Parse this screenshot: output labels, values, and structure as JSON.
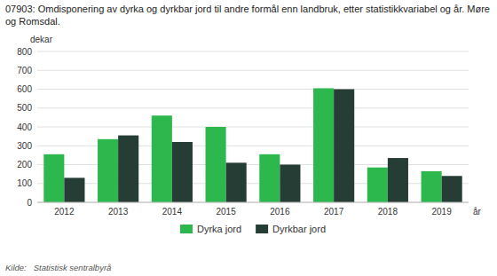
{
  "chart_data": {
    "type": "bar",
    "title": "07903: Omdisponering av dyrka og dyrkbar jord til andre formål enn landbruk, etter statistikkvariabel og år. Møre og Romsdal.",
    "source": "Kilde:   Statistisk sentralbyrå",
    "x_label": "år",
    "y_label": "dekar",
    "categories": [
      "2012",
      "2013",
      "2014",
      "2015",
      "2016",
      "2017",
      "2018",
      "2019"
    ],
    "series": [
      {
        "name": "Dyrka jord",
        "color": "#2db84e",
        "values": [
          255,
          335,
          460,
          400,
          255,
          605,
          185,
          165
        ]
      },
      {
        "name": "Dyrkbar jord",
        "color": "#263d35",
        "values": [
          130,
          355,
          320,
          210,
          200,
          600,
          235,
          140
        ]
      }
    ],
    "ylim": [
      0,
      800
    ],
    "yticks": [
      0,
      100,
      200,
      300,
      400,
      500,
      600,
      700,
      800
    ],
    "grid": true,
    "legend": "bottom"
  }
}
